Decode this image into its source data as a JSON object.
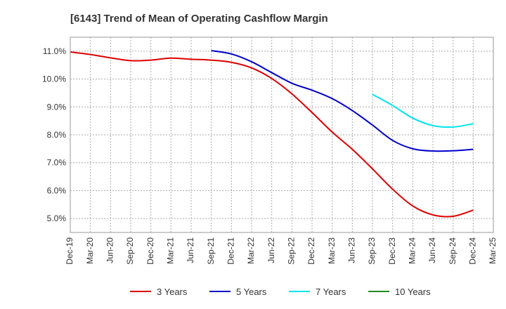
{
  "chart_data": {
    "type": "line",
    "title": "[6143]  Trend of Mean of Operating Cashflow Margin",
    "xlabel": "",
    "ylabel": "",
    "ylim": [
      4.5,
      11.5
    ],
    "yticks": [
      5.0,
      6.0,
      7.0,
      8.0,
      9.0,
      10.0,
      11.0
    ],
    "ytick_labels": [
      "5.0%",
      "6.0%",
      "7.0%",
      "8.0%",
      "9.0%",
      "10.0%",
      "11.0%"
    ],
    "categories": [
      "Dec-19",
      "Mar-20",
      "Jun-20",
      "Sep-20",
      "Dec-20",
      "Mar-21",
      "Jun-21",
      "Sep-21",
      "Dec-21",
      "Mar-22",
      "Jun-22",
      "Sep-22",
      "Dec-22",
      "Mar-23",
      "Jun-23",
      "Sep-23",
      "Dec-23",
      "Mar-24",
      "Jun-24",
      "Sep-24",
      "Dec-24",
      "Mar-25"
    ],
    "grid": true,
    "legend_position": "bottom",
    "series": [
      {
        "name": "3 Years",
        "color": "#dd0000",
        "values": [
          10.97,
          10.88,
          10.76,
          10.66,
          10.68,
          10.75,
          10.71,
          10.68,
          10.6,
          10.4,
          10.02,
          9.47,
          8.8,
          8.1,
          7.48,
          6.78,
          6.05,
          5.45,
          5.13,
          5.08,
          5.3,
          null
        ]
      },
      {
        "name": "5 Years",
        "color": "#0000cc",
        "values": [
          null,
          null,
          null,
          null,
          null,
          null,
          null,
          11.02,
          10.9,
          10.62,
          10.23,
          9.85,
          9.6,
          9.3,
          8.87,
          8.35,
          7.8,
          7.5,
          7.42,
          7.43,
          7.48,
          null
        ]
      },
      {
        "name": "7 Years",
        "color": "#00e5ee",
        "values": [
          null,
          null,
          null,
          null,
          null,
          null,
          null,
          null,
          null,
          null,
          null,
          null,
          null,
          null,
          null,
          9.45,
          9.05,
          8.6,
          8.33,
          8.28,
          8.4,
          null
        ]
      },
      {
        "name": "10 Years",
        "color": "#228b22",
        "values": [
          null,
          null,
          null,
          null,
          null,
          null,
          null,
          null,
          null,
          null,
          null,
          null,
          null,
          null,
          null,
          null,
          null,
          null,
          null,
          null,
          null,
          null
        ]
      }
    ]
  }
}
